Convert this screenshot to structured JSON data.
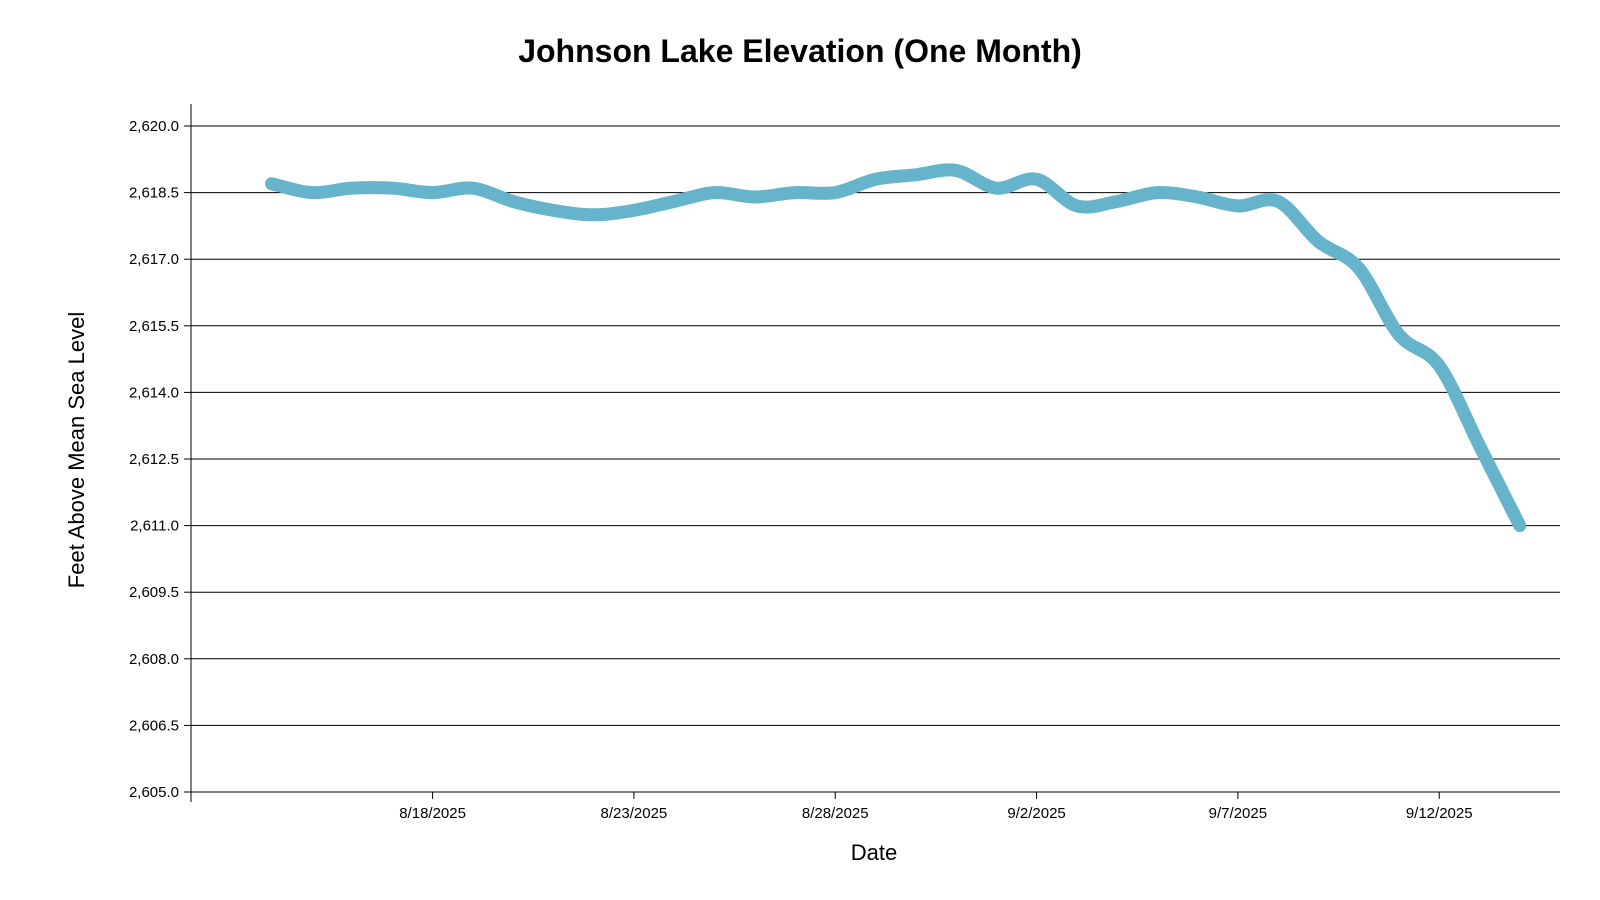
{
  "chart_data": {
    "type": "line",
    "title": "Johnson Lake Elevation (One Month)",
    "xlabel": "Date",
    "ylabel": "Feet Above Mean Sea Level",
    "ylim": [
      2605.0,
      2620.0
    ],
    "xlim": [
      "2025-08-12",
      "2025-09-15"
    ],
    "y_ticks": [
      2605.0,
      2606.5,
      2608.0,
      2609.5,
      2611.0,
      2612.5,
      2614.0,
      2615.5,
      2617.0,
      2618.5,
      2620.0
    ],
    "y_tick_labels": [
      "2,605.0",
      "2,606.5",
      "2,608.0",
      "2,609.5",
      "2,611.0",
      "2,612.5",
      "2,614.0",
      "2,615.5",
      "2,617.0",
      "2,618.5",
      "2,620.0"
    ],
    "x_ticks": [
      "2025-08-18",
      "2025-08-23",
      "2025-08-28",
      "2025-09-02",
      "2025-09-07",
      "2025-09-12"
    ],
    "x_tick_labels": [
      "8/18/2025",
      "8/23/2025",
      "8/28/2025",
      "9/2/2025",
      "9/7/2025",
      "9/12/2025"
    ],
    "grid": "horizontal",
    "series": [
      {
        "color": "#65b4cc",
        "x": [
          "2025-08-14",
          "2025-08-15",
          "2025-08-16",
          "2025-08-17",
          "2025-08-18",
          "2025-08-19",
          "2025-08-20",
          "2025-08-21",
          "2025-08-22",
          "2025-08-23",
          "2025-08-24",
          "2025-08-25",
          "2025-08-26",
          "2025-08-27",
          "2025-08-28",
          "2025-08-29",
          "2025-08-30",
          "2025-08-31",
          "2025-09-01",
          "2025-09-02",
          "2025-09-03",
          "2025-09-04",
          "2025-09-05",
          "2025-09-06",
          "2025-09-07",
          "2025-09-08",
          "2025-09-09",
          "2025-09-10",
          "2025-09-11",
          "2025-09-12",
          "2025-09-13",
          "2025-09-14"
        ],
        "values": [
          2618.7,
          2618.5,
          2618.6,
          2618.6,
          2618.5,
          2618.6,
          2618.3,
          2618.1,
          2618.0,
          2618.1,
          2618.3,
          2618.5,
          2618.4,
          2618.5,
          2618.5,
          2618.8,
          2618.9,
          2619.0,
          2618.6,
          2618.8,
          2618.2,
          2618.3,
          2618.5,
          2618.4,
          2618.2,
          2618.3,
          2617.4,
          2616.8,
          2615.3,
          2614.6,
          2612.8,
          2611.0
        ]
      }
    ]
  }
}
